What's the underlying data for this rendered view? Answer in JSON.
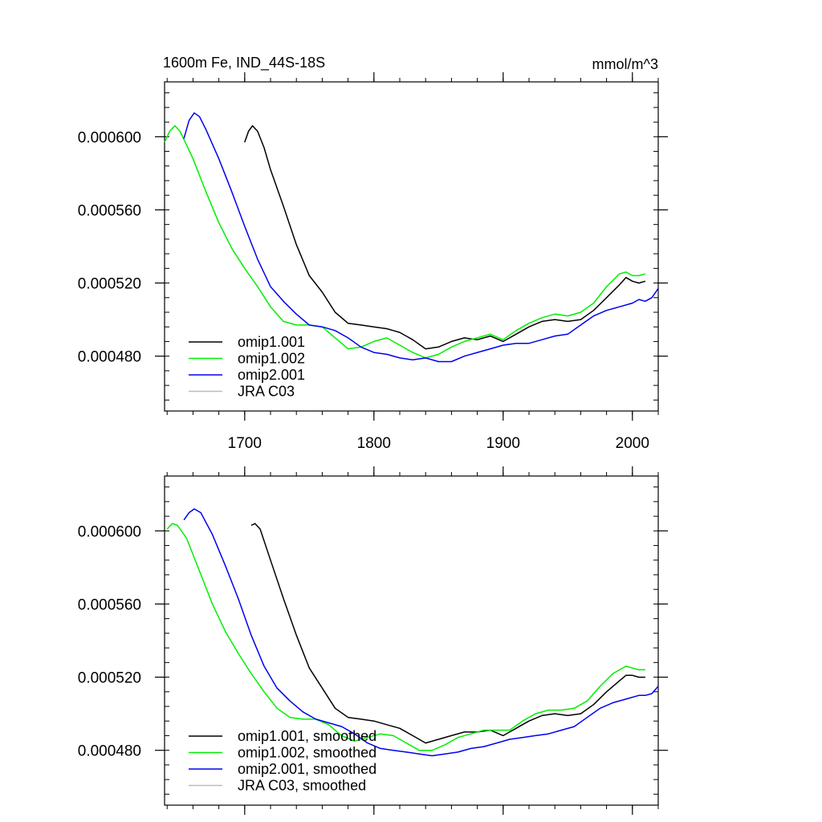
{
  "figure": {
    "title_left": "1600m Fe, IND_44S-18S",
    "title_right": "mmol/m^3"
  },
  "colors": {
    "omip1.001": "#000000",
    "omip1.002": "#00ee00",
    "omip2.001": "#0000ee",
    "JRA C03": "#bbbbbb",
    "axis": "#000000"
  },
  "chart_data": [
    {
      "type": "line",
      "panel": "top",
      "title": "1600m Fe, IND_44S-18S",
      "units": "mmol/m^3",
      "xlim": [
        1638,
        2020
      ],
      "ylim": [
        0.00045,
        0.00063
      ],
      "x_ticks": [
        1700,
        1800,
        1900,
        2000
      ],
      "x_tick_labels": [
        "1700",
        "1800",
        "1900",
        "2000"
      ],
      "y_ticks": [
        0.00048,
        0.00052,
        0.00056,
        0.0006
      ],
      "y_tick_labels": [
        "0.000480",
        "0.000520",
        "0.000560",
        "0.000600"
      ],
      "legend_position": "bottom-left",
      "series": [
        {
          "name": "omip1.001",
          "label": "omip1.001",
          "color": "#000000",
          "x": [
            1700,
            1703,
            1706,
            1710,
            1715,
            1720,
            1730,
            1740,
            1750,
            1760,
            1770,
            1780,
            1790,
            1800,
            1810,
            1815,
            1820,
            1830,
            1840,
            1850,
            1860,
            1870,
            1880,
            1890,
            1900,
            1910,
            1920,
            1930,
            1940,
            1950,
            1960,
            1970,
            1980,
            1990,
            1995,
            2000,
            2005,
            2010
          ],
          "y": [
            0.000597,
            0.000603,
            0.000606,
            0.000603,
            0.000594,
            0.000582,
            0.000562,
            0.000541,
            0.000524,
            0.000515,
            0.000504,
            0.000498,
            0.000497,
            0.000496,
            0.000495,
            0.000494,
            0.000493,
            0.000489,
            0.000484,
            0.000485,
            0.000488,
            0.00049,
            0.000489,
            0.000491,
            0.000488,
            0.000492,
            0.000496,
            0.000499,
            0.0005,
            0.000499,
            0.0005,
            0.000505,
            0.000512,
            0.000519,
            0.000523,
            0.000521,
            0.00052,
            0.000521
          ]
        },
        {
          "name": "omip1.002",
          "label": "omip1.002",
          "color": "#00ee00",
          "x": [
            1638,
            1642,
            1646,
            1650,
            1660,
            1670,
            1680,
            1690,
            1700,
            1710,
            1720,
            1730,
            1740,
            1750,
            1760,
            1770,
            1780,
            1790,
            1800,
            1810,
            1820,
            1830,
            1840,
            1850,
            1860,
            1870,
            1880,
            1890,
            1900,
            1910,
            1920,
            1930,
            1940,
            1950,
            1960,
            1970,
            1980,
            1990,
            1995,
            2000,
            2005,
            2010
          ],
          "y": [
            0.000597,
            0.000603,
            0.000606,
            0.000603,
            0.000588,
            0.00057,
            0.000553,
            0.000539,
            0.000528,
            0.000518,
            0.000507,
            0.000499,
            0.000497,
            0.000497,
            0.000496,
            0.00049,
            0.000484,
            0.000485,
            0.000488,
            0.00049,
            0.000486,
            0.000482,
            0.000479,
            0.000481,
            0.000485,
            0.000488,
            0.00049,
            0.000492,
            0.000489,
            0.000494,
            0.000498,
            0.000501,
            0.000503,
            0.000502,
            0.000504,
            0.000509,
            0.000518,
            0.000525,
            0.000526,
            0.000524,
            0.000524,
            0.000525
          ]
        },
        {
          "name": "omip2.001",
          "label": "omip2.001",
          "color": "#0000ee",
          "x": [
            1653,
            1657,
            1661,
            1665,
            1670,
            1680,
            1690,
            1700,
            1710,
            1720,
            1730,
            1740,
            1750,
            1760,
            1770,
            1780,
            1790,
            1800,
            1810,
            1820,
            1830,
            1840,
            1850,
            1860,
            1870,
            1880,
            1890,
            1900,
            1910,
            1920,
            1930,
            1940,
            1950,
            1960,
            1970,
            1980,
            1990,
            2000,
            2005,
            2010,
            2015,
            2020
          ],
          "y": [
            0.000599,
            0.000609,
            0.000613,
            0.000611,
            0.000604,
            0.000588,
            0.00057,
            0.000551,
            0.000533,
            0.000518,
            0.00051,
            0.000503,
            0.000497,
            0.000496,
            0.000494,
            0.00049,
            0.000485,
            0.000482,
            0.000481,
            0.000479,
            0.000478,
            0.000479,
            0.000477,
            0.000477,
            0.00048,
            0.000482,
            0.000484,
            0.000486,
            0.000487,
            0.000487,
            0.000489,
            0.000491,
            0.000492,
            0.000497,
            0.000502,
            0.000505,
            0.000507,
            0.000509,
            0.000511,
            0.00051,
            0.000512,
            0.000517
          ]
        },
        {
          "name": "JRA C03",
          "label": "JRA C03",
          "color": "#bbbbbb",
          "x": [],
          "y": []
        }
      ]
    },
    {
      "type": "line",
      "panel": "bottom",
      "title": "",
      "units": "",
      "xlim": [
        1638,
        2020
      ],
      "ylim": [
        0.00045,
        0.00063
      ],
      "x_ticks": [
        1700,
        1800,
        1900,
        2000
      ],
      "x_tick_labels": [],
      "y_ticks": [
        0.00048,
        0.00052,
        0.00056,
        0.0006
      ],
      "y_tick_labels": [
        "0.000480",
        "0.000520",
        "0.000560",
        "0.000600"
      ],
      "legend_position": "bottom-left",
      "series": [
        {
          "name": "omip1.001",
          "label": "omip1.001, smoothed",
          "color": "#000000",
          "x": [
            1705,
            1708,
            1712,
            1720,
            1730,
            1740,
            1750,
            1760,
            1770,
            1780,
            1790,
            1800,
            1810,
            1820,
            1830,
            1840,
            1850,
            1860,
            1870,
            1880,
            1890,
            1900,
            1910,
            1920,
            1930,
            1940,
            1950,
            1960,
            1970,
            1980,
            1990,
            1995,
            2000,
            2005,
            2010
          ],
          "y": [
            0.000603,
            0.000604,
            0.000601,
            0.000584,
            0.000563,
            0.000543,
            0.000525,
            0.000514,
            0.000503,
            0.000498,
            0.000497,
            0.000496,
            0.000494,
            0.000492,
            0.000488,
            0.000484,
            0.000486,
            0.000488,
            0.00049,
            0.00049,
            0.000491,
            0.000488,
            0.000492,
            0.000496,
            0.000499,
            0.0005,
            0.000499,
            0.0005,
            0.000505,
            0.000512,
            0.000518,
            0.000521,
            0.000521,
            0.00052,
            0.00052
          ]
        },
        {
          "name": "omip1.002",
          "label": "omip1.002, smoothed",
          "color": "#00ee00",
          "x": [
            1640,
            1644,
            1648,
            1655,
            1665,
            1675,
            1685,
            1695,
            1705,
            1715,
            1725,
            1735,
            1745,
            1755,
            1765,
            1775,
            1785,
            1795,
            1805,
            1815,
            1825,
            1835,
            1845,
            1855,
            1865,
            1875,
            1885,
            1895,
            1905,
            1915,
            1925,
            1935,
            1945,
            1955,
            1965,
            1975,
            1985,
            1995,
            2000,
            2005,
            2010
          ],
          "y": [
            0.000601,
            0.000604,
            0.000603,
            0.000596,
            0.000578,
            0.00056,
            0.000545,
            0.000533,
            0.000522,
            0.000512,
            0.000503,
            0.000498,
            0.000497,
            0.000497,
            0.000494,
            0.000488,
            0.000485,
            0.000487,
            0.000489,
            0.000488,
            0.000484,
            0.00048,
            0.00048,
            0.000483,
            0.000487,
            0.000489,
            0.000491,
            0.000491,
            0.000491,
            0.000496,
            0.0005,
            0.000502,
            0.000502,
            0.000503,
            0.000507,
            0.000515,
            0.000522,
            0.000526,
            0.000525,
            0.000524,
            0.000524
          ]
        },
        {
          "name": "omip2.001",
          "label": "omip2.001, smoothed",
          "color": "#0000ee",
          "x": [
            1653,
            1657,
            1661,
            1666,
            1675,
            1685,
            1695,
            1705,
            1715,
            1725,
            1735,
            1745,
            1755,
            1765,
            1775,
            1785,
            1795,
            1805,
            1815,
            1825,
            1835,
            1845,
            1855,
            1865,
            1875,
            1885,
            1895,
            1905,
            1915,
            1925,
            1935,
            1945,
            1955,
            1965,
            1975,
            1985,
            1995,
            2005,
            2010,
            2015,
            2020
          ],
          "y": [
            0.000606,
            0.00061,
            0.000612,
            0.00061,
            0.000598,
            0.000581,
            0.000563,
            0.000543,
            0.000526,
            0.000514,
            0.000507,
            0.000501,
            0.000497,
            0.000495,
            0.000493,
            0.000489,
            0.000484,
            0.000481,
            0.00048,
            0.000479,
            0.000478,
            0.000477,
            0.000478,
            0.000479,
            0.000481,
            0.000482,
            0.000484,
            0.000486,
            0.000487,
            0.000488,
            0.000489,
            0.000491,
            0.000493,
            0.000498,
            0.000503,
            0.000506,
            0.000508,
            0.00051,
            0.00051,
            0.000511,
            0.000515
          ]
        },
        {
          "name": "JRA C03",
          "label": "JRA C03, smoothed",
          "color": "#bbbbbb",
          "x": [],
          "y": []
        }
      ]
    }
  ]
}
